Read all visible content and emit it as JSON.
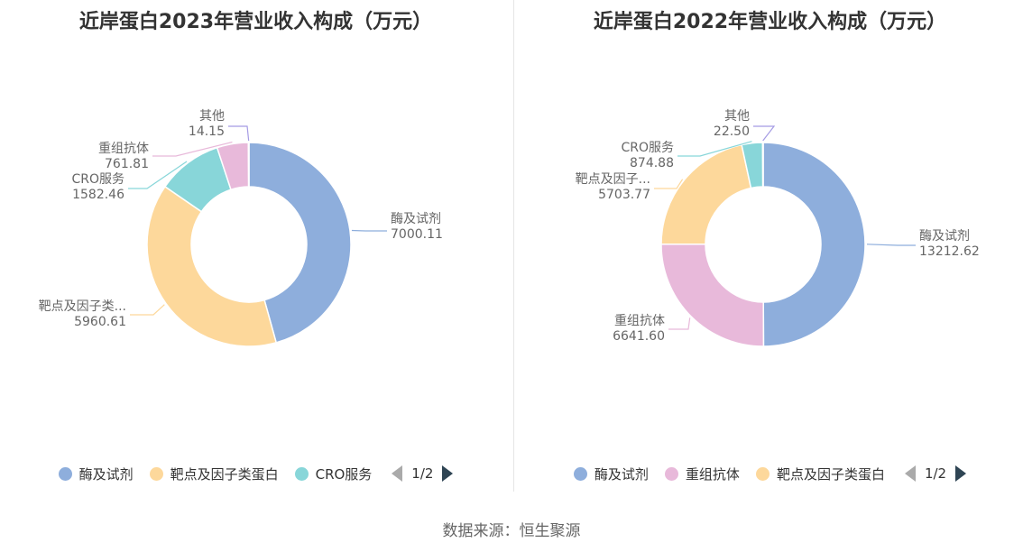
{
  "colors": {
    "酶及试剂": "#8eaedc",
    "靶点及因子类蛋白": "#fdd89b",
    "CRO服务": "#88d6d9",
    "重组抗体": "#e8b9da",
    "其他": "#a59be4"
  },
  "charts": [
    {
      "title": "近岸蛋白2023年营业收入构成（万元）",
      "legend": {
        "items": [
          "酶及试剂",
          "靶点及因子类蛋白",
          "CRO服务"
        ],
        "page": "1/2"
      }
    },
    {
      "title": "近岸蛋白2022年营业收入构成（万元）",
      "legend": {
        "items": [
          "酶及试剂",
          "重组抗体",
          "靶点及因子类蛋白"
        ],
        "page": "1/2"
      }
    }
  ],
  "chart_data": [
    {
      "type": "pie",
      "title": "近岸蛋白2023年营业收入构成（万元）",
      "slices": [
        {
          "label": "酶及试剂",
          "display": "酶及试剂",
          "value": 7000.11,
          "value_text": "7000.11"
        },
        {
          "label": "靶点及因子类蛋白",
          "display": "靶点及因子类...",
          "value": 5960.61,
          "value_text": "5960.61"
        },
        {
          "label": "CRO服务",
          "display": "CRO服务",
          "value": 1582.46,
          "value_text": "1582.46"
        },
        {
          "label": "重组抗体",
          "display": "重组抗体",
          "value": 761.81,
          "value_text": "761.81"
        },
        {
          "label": "其他",
          "display": "其他",
          "value": 14.15,
          "value_text": "14.15"
        }
      ]
    },
    {
      "type": "pie",
      "title": "近岸蛋白2022年营业收入构成（万元）",
      "slices": [
        {
          "label": "酶及试剂",
          "display": "酶及试剂",
          "value": 13212.62,
          "value_text": "13212.62"
        },
        {
          "label": "重组抗体",
          "display": "重组抗体",
          "value": 6641.6,
          "value_text": "6641.60"
        },
        {
          "label": "靶点及因子类蛋白",
          "display": "靶点及因子...",
          "value": 5703.77,
          "value_text": "5703.77"
        },
        {
          "label": "CRO服务",
          "display": "CRO服务",
          "value": 874.88,
          "value_text": "874.88"
        },
        {
          "label": "其他",
          "display": "其他",
          "value": 22.5,
          "value_text": "22.50"
        }
      ]
    }
  ],
  "source": "数据来源：恒生聚源"
}
